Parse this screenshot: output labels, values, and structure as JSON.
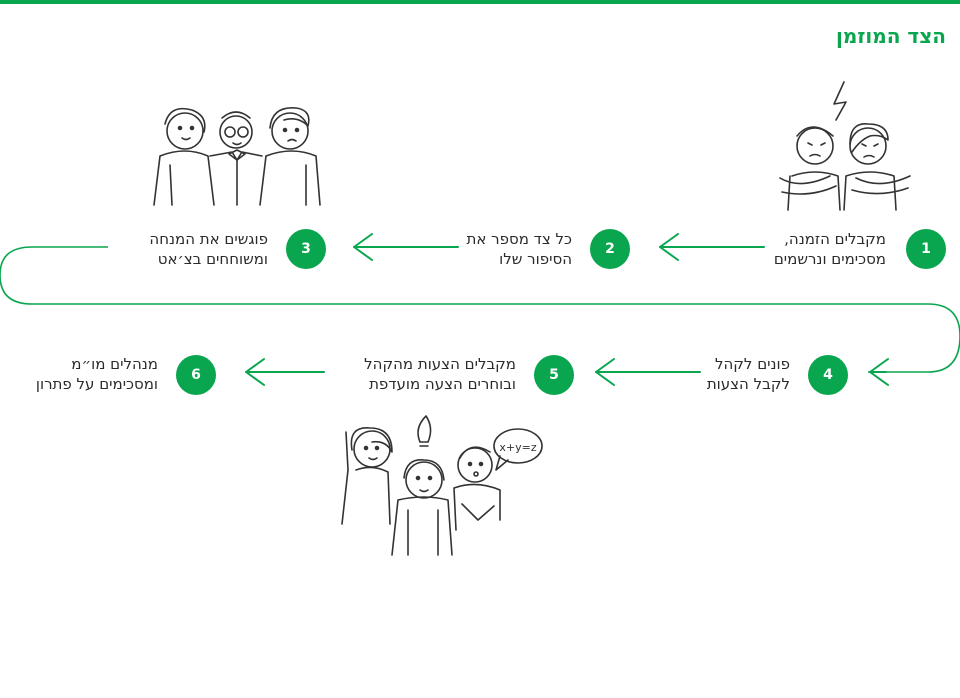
{
  "title": "הצד המוזמן",
  "steps": [
    {
      "number": "1",
      "line1": "מקבלים הזמנה,",
      "line2": "מסכימים ונרשמים"
    },
    {
      "number": "2",
      "line1": "כל צד מספר את",
      "line2": "הסיפור שלו"
    },
    {
      "number": "3",
      "line1": "פוגשים את המנחה",
      "line2": "ומשוחחים בצ׳אט"
    },
    {
      "number": "4",
      "line1": "פונים לקהל",
      "line2": "לקבל הצעות"
    },
    {
      "number": "5",
      "line1": "מקבלים הצעות מהקהל",
      "line2": "ובוחרים הצעה מועדפת"
    },
    {
      "number": "6",
      "line1": "מנהלים מו״מ",
      "line2": "ומסכימים על פתרון"
    }
  ],
  "bubble_text": "x+y=z",
  "colors": {
    "accent": "#0aa64f",
    "text": "#2b2b2b",
    "ink": "#333333"
  },
  "icons": [
    "arguing-pair-illustration",
    "group-meeting-illustration",
    "audience-ideas-illustration"
  ]
}
